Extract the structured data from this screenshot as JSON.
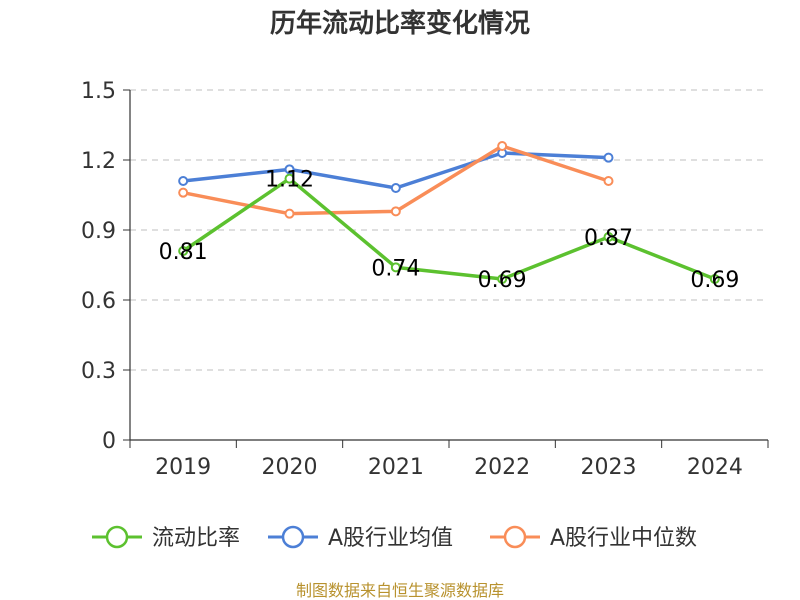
{
  "chart_data": {
    "type": "line",
    "title": "历年流动比率变化情况",
    "categories": [
      "2019",
      "2020",
      "2021",
      "2022",
      "2023",
      "2024"
    ],
    "ylim": [
      0,
      1.5
    ],
    "yticks": [
      "0",
      "0.3",
      "0.6",
      "0.9",
      "1.2",
      "1.5"
    ],
    "grid": true,
    "legend_position": "bottom",
    "series": [
      {
        "name": "流动比率",
        "color": "#5cc12f",
        "values": [
          0.81,
          1.12,
          0.74,
          0.69,
          0.87,
          0.69
        ],
        "labels": [
          "0.81",
          "1.12",
          "0.74",
          "0.69",
          "0.87",
          "0.69"
        ]
      },
      {
        "name": "A股行业均值",
        "color": "#4c7fd6",
        "values": [
          1.11,
          1.16,
          1.08,
          1.23,
          1.21,
          null
        ]
      },
      {
        "name": "A股行业中位数",
        "color": "#f98d58",
        "values": [
          1.06,
          0.97,
          0.98,
          1.26,
          1.11,
          null
        ]
      }
    ]
  },
  "source": "制图数据来自恒生聚源数据库"
}
